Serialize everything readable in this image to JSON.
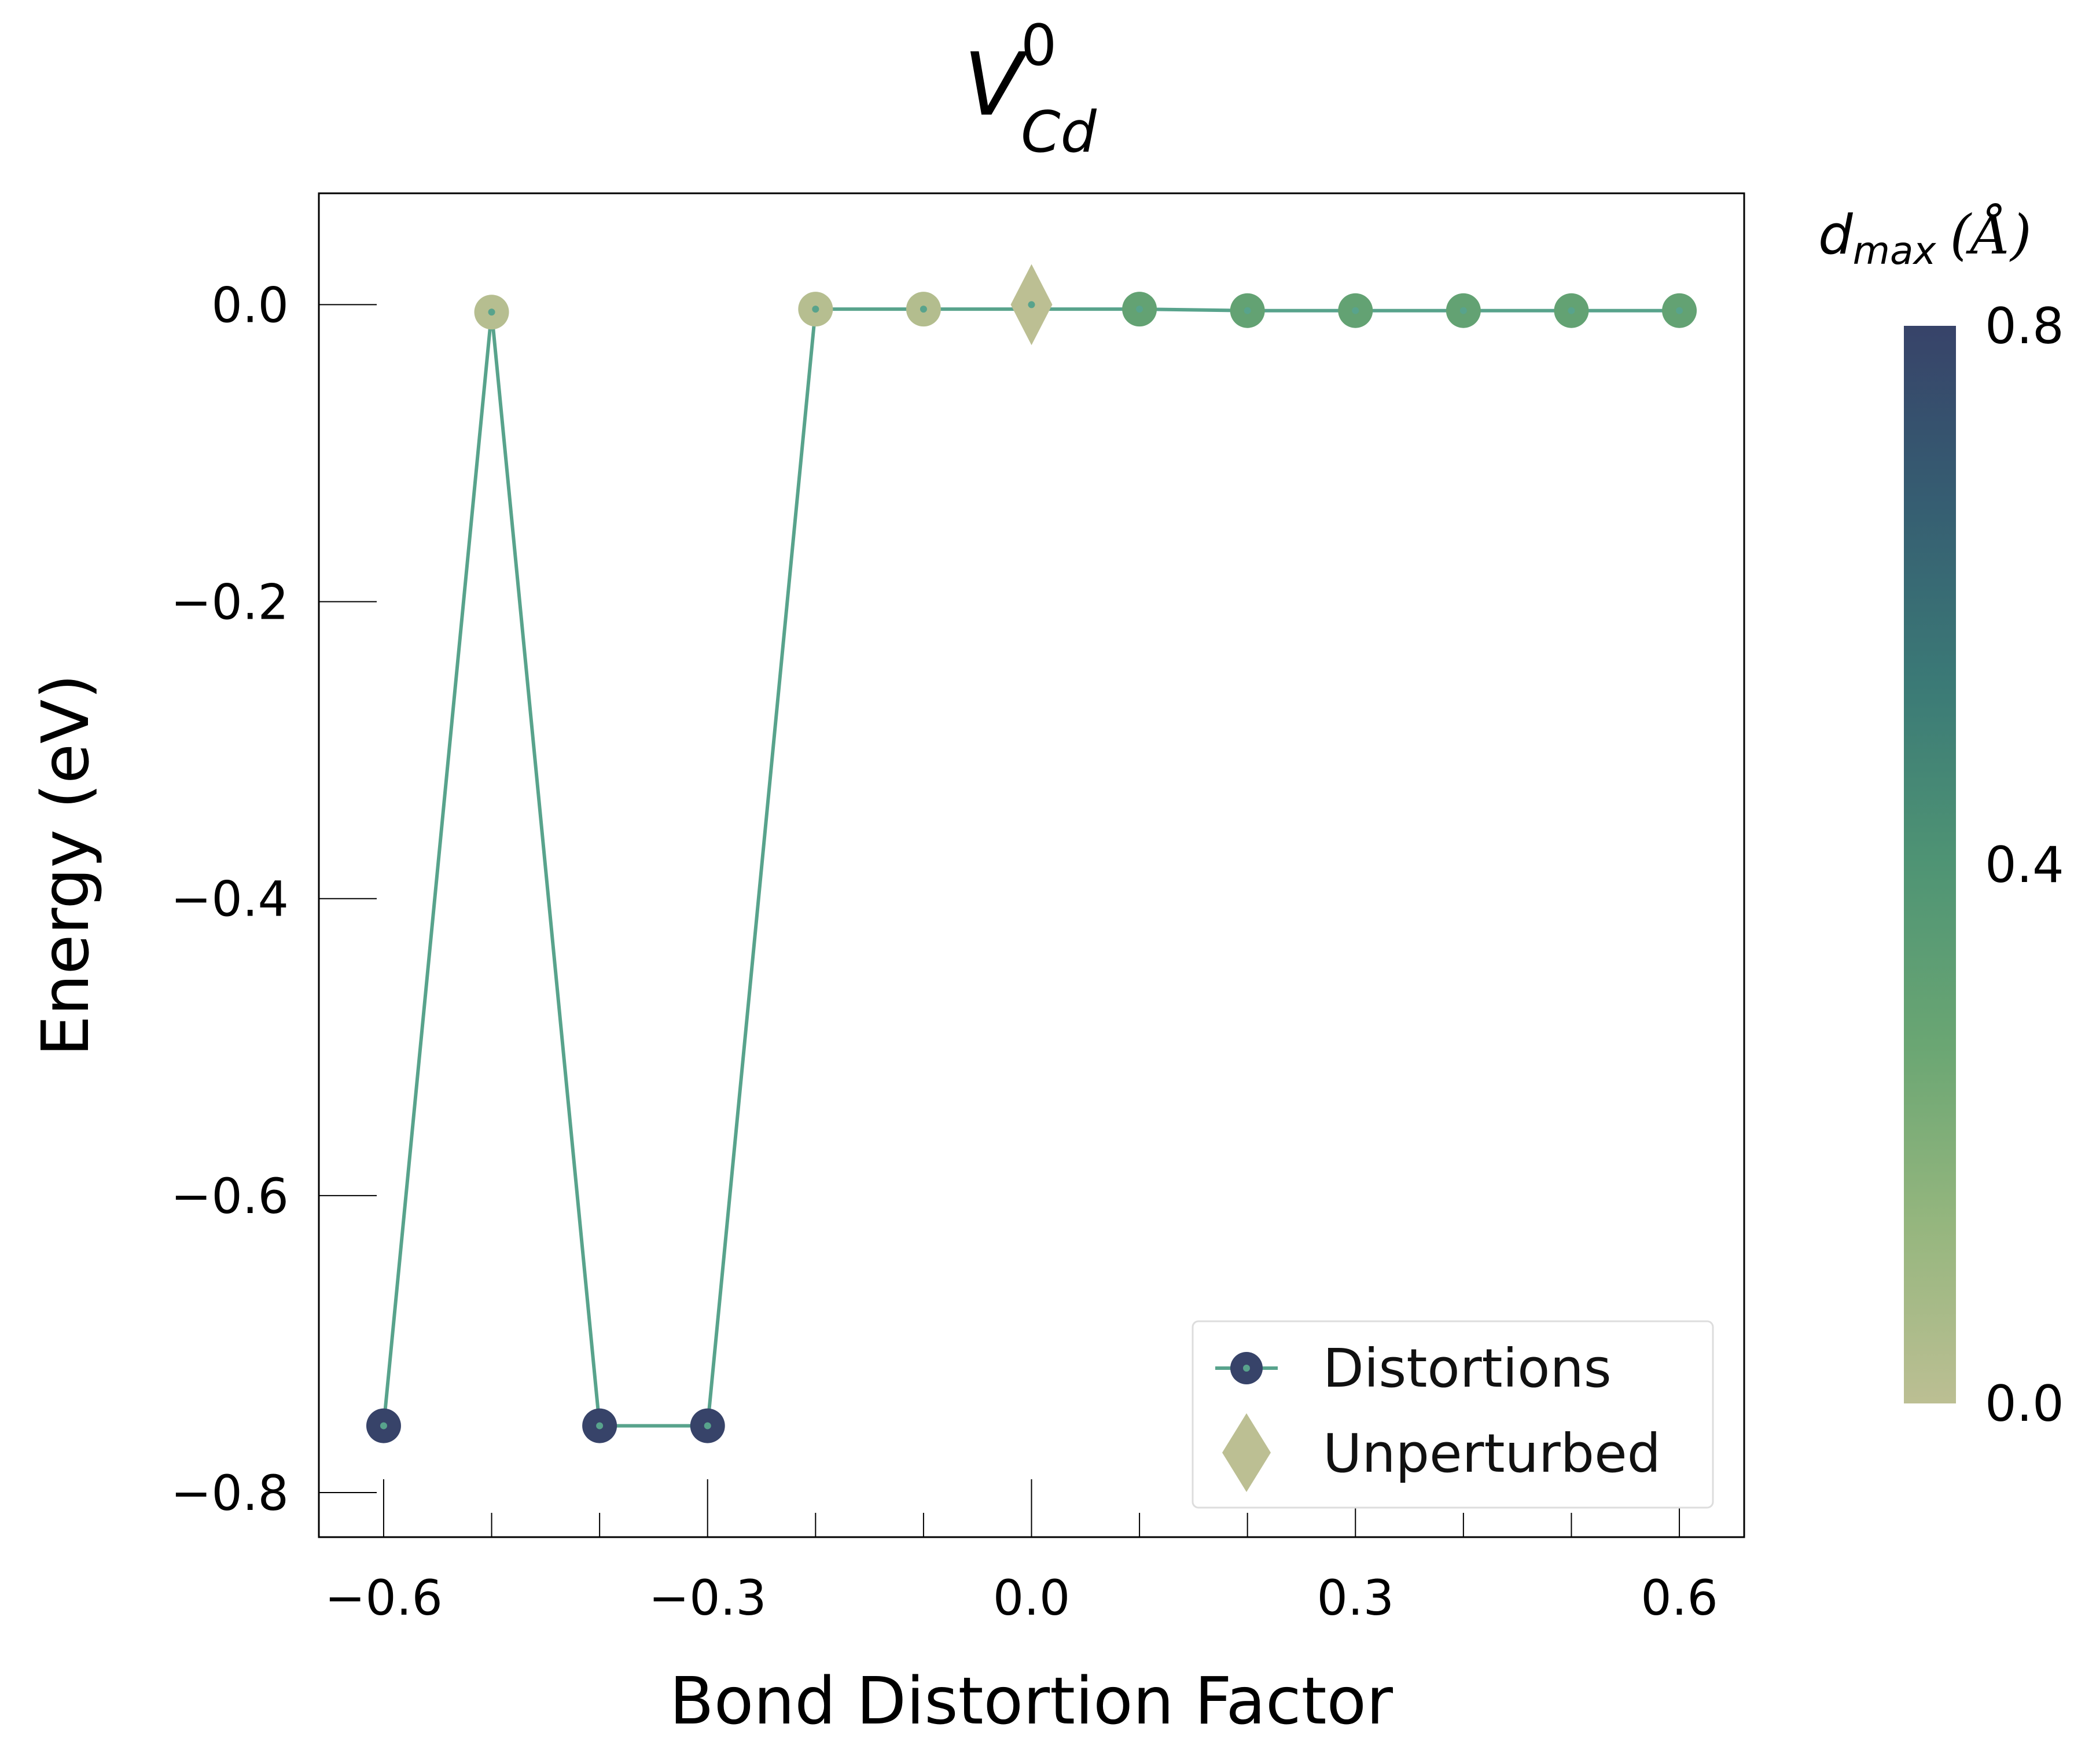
{
  "chart_data": {
    "type": "line",
    "title": {
      "base": "V",
      "superscript": "0",
      "subscript": "Cd"
    },
    "xlabel": "Bond Distortion Factor",
    "ylabel": "Energy (eV)",
    "xlim": [
      -0.66,
      0.66
    ],
    "ylim": [
      -0.83,
      0.075
    ],
    "x_ticks": [
      -0.6,
      -0.3,
      0.0,
      0.3,
      0.6
    ],
    "x_tick_labels": [
      "−0.6",
      "−0.3",
      "0.0",
      "0.3",
      "0.6"
    ],
    "y_ticks": [
      0.0,
      -0.2,
      -0.4,
      -0.6,
      -0.8
    ],
    "y_tick_labels": [
      "0.0",
      "−0.2",
      "−0.4",
      "−0.6",
      "−0.8"
    ],
    "grid": false,
    "series": [
      {
        "name": "Distortions",
        "line_color": "#58a38c",
        "x": [
          -0.6,
          -0.5,
          -0.4,
          -0.3,
          -0.2,
          -0.1,
          0.1,
          0.2,
          0.3,
          0.4,
          0.5,
          0.6
        ],
        "y": [
          -0.755,
          -0.005,
          -0.755,
          -0.755,
          -0.003,
          -0.003,
          -0.003,
          -0.004,
          -0.004,
          -0.004,
          -0.004,
          -0.004
        ],
        "d_max": [
          0.8,
          0.02,
          0.8,
          0.8,
          0.02,
          0.03,
          0.3,
          0.3,
          0.3,
          0.3,
          0.3,
          0.3
        ]
      },
      {
        "name": "Unperturbed",
        "marker": "diamond",
        "x": [
          0.0
        ],
        "y": [
          0.0
        ],
        "d_max": [
          0.0
        ]
      }
    ],
    "legend": {
      "placement": "lower right",
      "entries": [
        "Distortions",
        "Unperturbed"
      ]
    },
    "colorbar": {
      "label_main": "d",
      "label_sub": "max",
      "label_unit": "(Å)",
      "range": [
        0.0,
        0.8
      ],
      "ticks": [
        0.0,
        0.4,
        0.8
      ],
      "tick_labels": [
        "0.0",
        "0.4",
        "0.8"
      ],
      "colors": [
        "#bcbf93",
        "#95b67e",
        "#6aa673",
        "#4f9474",
        "#3b7a76",
        "#365e72",
        "#374369"
      ]
    }
  }
}
